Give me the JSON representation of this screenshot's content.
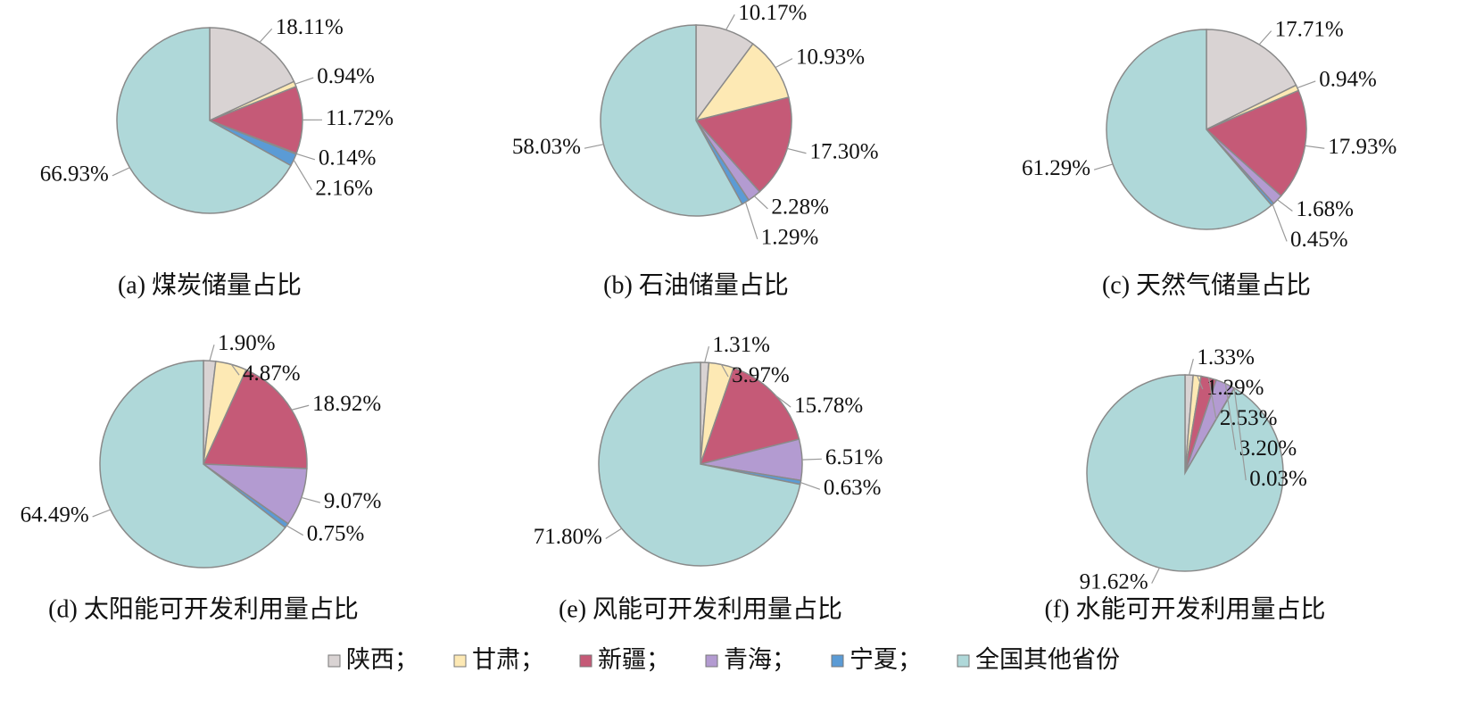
{
  "chart_data": [
    {
      "type": "pie",
      "title": "(a) 煤炭储量占比",
      "values": [
        18.11,
        0.94,
        11.72,
        0.14,
        2.16,
        66.93
      ],
      "value_labels": [
        "18.11%",
        "0.94%",
        "11.72%",
        "0.14%",
        "2.16%",
        "66.93%"
      ]
    },
    {
      "type": "pie",
      "title": "(b) 石油储量占比",
      "values": [
        10.17,
        10.93,
        17.3,
        2.28,
        1.29,
        58.03
      ],
      "value_labels": [
        "10.17%",
        "10.93%",
        "17.30%",
        "2.28%",
        "1.29%",
        "58.03%"
      ]
    },
    {
      "type": "pie",
      "title": "(c) 天然气储量占比",
      "values": [
        17.71,
        0.94,
        17.93,
        1.68,
        0.45,
        61.29
      ],
      "value_labels": [
        "17.71%",
        "0.94%",
        "17.93%",
        "1.68%",
        "0.45%",
        "61.29%"
      ]
    },
    {
      "type": "pie",
      "title": "(d) 太阳能可开发利用量占比",
      "values": [
        1.9,
        4.87,
        18.92,
        9.07,
        0.75,
        64.49
      ],
      "value_labels": [
        "1.90%",
        "4.87%",
        "18.92%",
        "9.07%",
        "0.75%",
        "64.49%"
      ]
    },
    {
      "type": "pie",
      "title": "(e) 风能可开发利用量占比",
      "values": [
        1.31,
        3.97,
        15.78,
        6.51,
        0.63,
        71.8
      ],
      "value_labels": [
        "1.31%",
        "3.97%",
        "15.78%",
        "6.51%",
        "0.63%",
        "71.80%"
      ]
    },
    {
      "type": "pie",
      "title": "(f) 水能可开发利用量占比",
      "values": [
        1.33,
        1.29,
        2.53,
        3.2,
        0.03,
        91.62
      ],
      "value_labels": [
        "1.33%",
        "1.29%",
        "2.53%",
        "3.20%",
        "0.03%",
        "91.62%"
      ]
    }
  ],
  "legend": {
    "items": [
      {
        "name": "陕西；",
        "color": "#d9d3d3"
      },
      {
        "name": "甘肃；",
        "color": "#fde9b4"
      },
      {
        "name": "新疆；",
        "color": "#c55a77"
      },
      {
        "name": "青海；",
        "color": "#b39bd1"
      },
      {
        "name": "宁夏；",
        "color": "#5b9bd5"
      },
      {
        "name": "全国其他省份",
        "color": "#afd8d9"
      }
    ]
  }
}
